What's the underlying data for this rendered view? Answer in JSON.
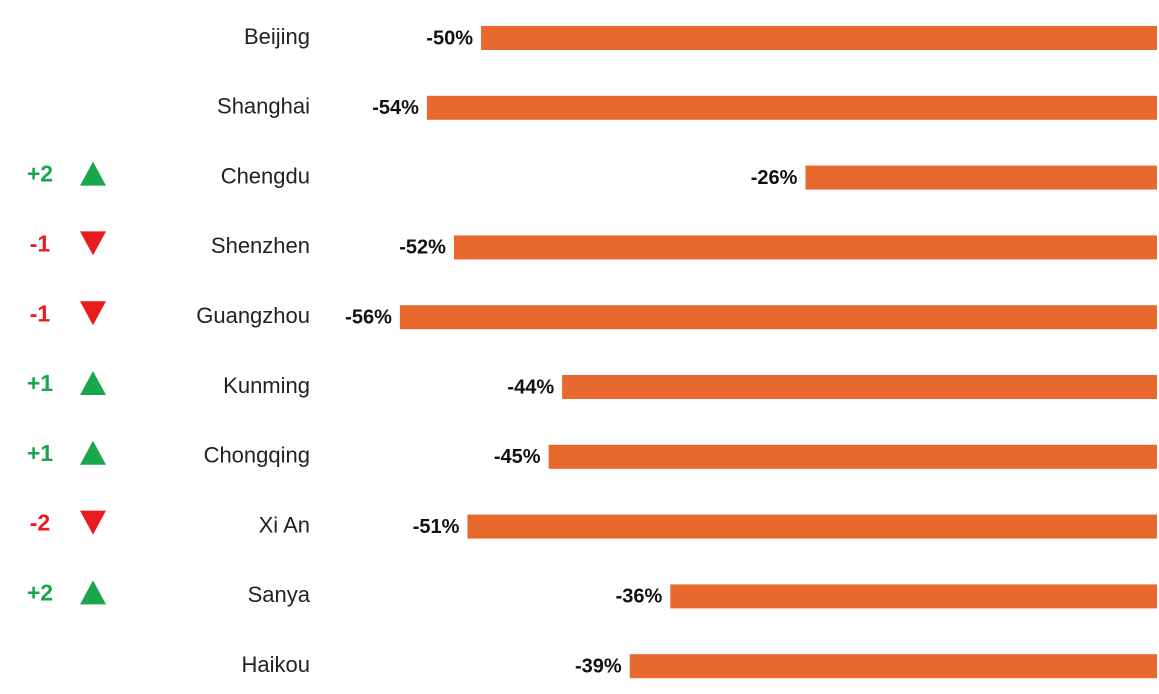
{
  "chart_data": {
    "type": "bar",
    "categories": [
      "Beijing",
      "Shanghai",
      "Chengdu",
      "Shenzhen",
      "Guangzhou",
      "Kunming",
      "Chongqing",
      "Xi An",
      "Sanya",
      "Haikou"
    ],
    "values": [
      -50,
      -54,
      -26,
      -52,
      -56,
      -44,
      -45,
      -51,
      -36,
      -39
    ],
    "value_labels": [
      "-50%",
      "-54%",
      "-26%",
      "-52%",
      "-56%",
      "-44%",
      "-45%",
      "-51%",
      "-36%",
      "-39%"
    ],
    "color": "#e8692d",
    "rank_changes": [
      null,
      null,
      2,
      -1,
      -1,
      1,
      1,
      -2,
      2,
      null
    ],
    "rank_change_labels": [
      null,
      null,
      "+2",
      "-1",
      "-1",
      "+1",
      "+1",
      "-2",
      "+2",
      null
    ],
    "up_color": "#1aa64a",
    "down_color": "#e81c1c"
  }
}
